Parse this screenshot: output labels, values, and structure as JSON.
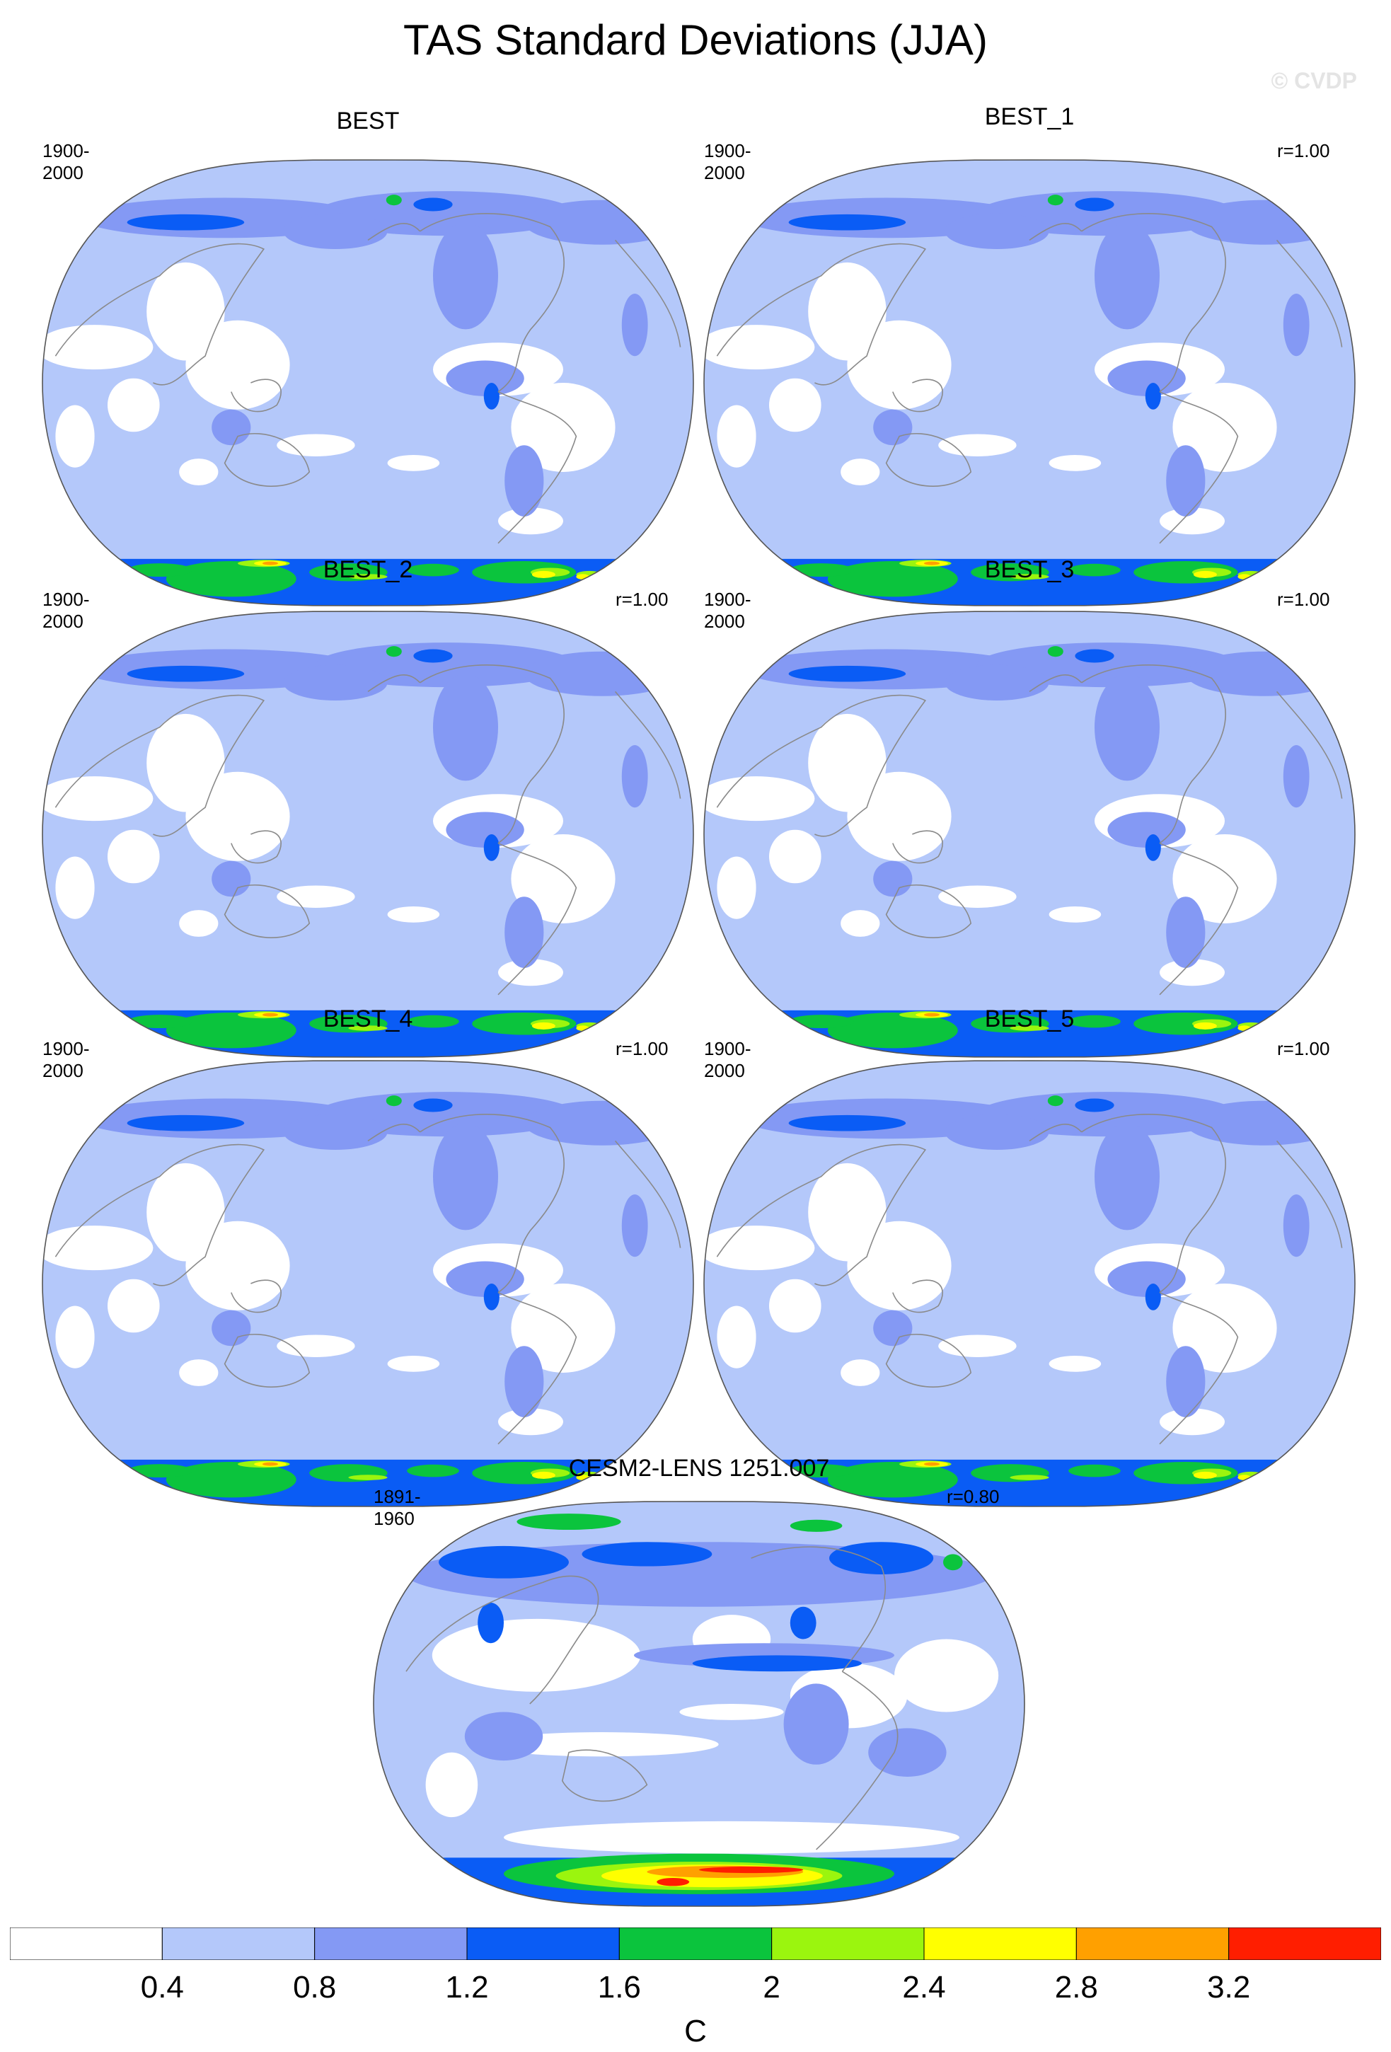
{
  "figure": {
    "title": "TAS Standard Deviations (JJA)",
    "watermark": "© CVDP"
  },
  "colors": {
    "levels": [
      "#ffffff",
      "#b4c8fa",
      "#8499f4",
      "#0a5cf5",
      "#0bc43d",
      "#9bf50e",
      "#ffff00",
      "#ffa000",
      "#ff1e00"
    ],
    "land_line": "#8a8a8a",
    "map_border": "#555555"
  },
  "chart_data": [
    {
      "type": "heatmap",
      "projection": "Robinson (Pacific-centered)",
      "title": "BEST",
      "period": "1900-2000",
      "pattern_correlation": "",
      "variable": "TAS standard deviation",
      "season": "JJA",
      "units": "C"
    },
    {
      "type": "heatmap",
      "projection": "Robinson (Pacific-centered)",
      "title": "BEST_1",
      "period": "1900-2000",
      "pattern_correlation": "r=1.00",
      "variable": "TAS standard deviation",
      "season": "JJA",
      "units": "C"
    },
    {
      "type": "heatmap",
      "projection": "Robinson (Pacific-centered)",
      "title": "BEST_2",
      "period": "1900-2000",
      "pattern_correlation": "r=1.00",
      "variable": "TAS standard deviation",
      "season": "JJA",
      "units": "C"
    },
    {
      "type": "heatmap",
      "projection": "Robinson (Pacific-centered)",
      "title": "BEST_3",
      "period": "1900-2000",
      "pattern_correlation": "r=1.00",
      "variable": "TAS standard deviation",
      "season": "JJA",
      "units": "C"
    },
    {
      "type": "heatmap",
      "projection": "Robinson (Pacific-centered)",
      "title": "BEST_4",
      "period": "1900-2000",
      "pattern_correlation": "r=1.00",
      "variable": "TAS standard deviation",
      "season": "JJA",
      "units": "C"
    },
    {
      "type": "heatmap",
      "projection": "Robinson (Pacific-centered)",
      "title": "BEST_5",
      "period": "1900-2000",
      "pattern_correlation": "r=1.00",
      "variable": "TAS standard deviation",
      "season": "JJA",
      "units": "C"
    },
    {
      "type": "heatmap",
      "projection": "Robinson (Pacific-centered)",
      "title": "CESM2-LENS 1251.007",
      "period": "1891-1960",
      "pattern_correlation": "r=0.80",
      "variable": "TAS standard deviation",
      "season": "JJA",
      "units": "C"
    }
  ],
  "colorbar": {
    "boundaries": [
      0.4,
      0.8,
      1.2,
      1.6,
      2,
      2.4,
      2.8,
      3.2
    ],
    "tick_labels": [
      "0.4",
      "0.8",
      "1.2",
      "1.6",
      "2",
      "2.4",
      "2.8",
      "3.2"
    ],
    "units": "C"
  }
}
